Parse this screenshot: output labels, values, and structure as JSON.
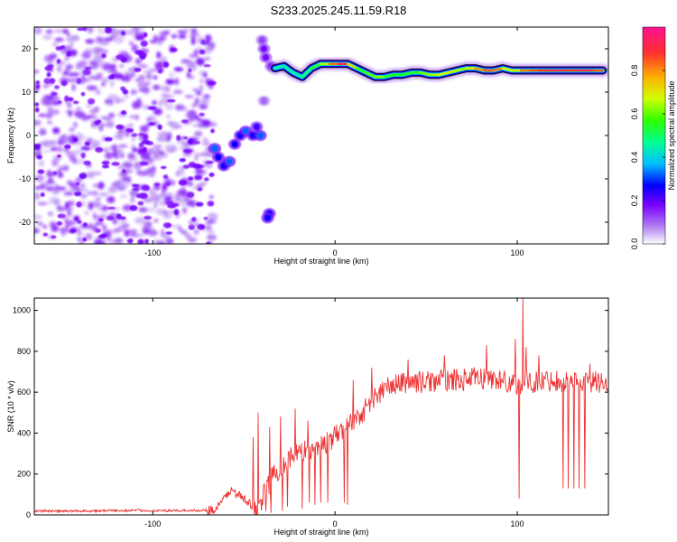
{
  "title": "S233.2025.245.11.59.R18",
  "chart_data": [
    {
      "type": "heatmap",
      "name": "spectrogram",
      "xlabel": "Height of straight line (km)",
      "ylabel": "Frequency (Hz)",
      "xlim": [
        -165,
        150
      ],
      "ylim": [
        -25,
        25
      ],
      "xticks": [
        -100,
        0,
        100
      ],
      "yticks": [
        -20,
        -10,
        0,
        10,
        20
      ],
      "xtick_labels": [
        "-100",
        "0",
        "100"
      ],
      "ytick_labels": [
        "-20",
        "-10",
        "0",
        "10",
        "20"
      ],
      "colorbar": {
        "label": "Normalized spectral amplitude",
        "range": [
          0,
          1
        ],
        "ticks": [
          0.0,
          0.2,
          0.4,
          0.6,
          0.8
        ],
        "tick_labels": [
          "0.0",
          "0.2",
          "0.4",
          "0.6",
          "0.8"
        ],
        "colors": [
          "#ffffff",
          "#b07ff0",
          "#7a00ff",
          "#0000ff",
          "#00c0ff",
          "#00ff90",
          "#30ff00",
          "#d0ff00",
          "#ffb000",
          "#ff3030",
          "#ff1090"
        ]
      },
      "noise_region": {
        "x": [
          -165,
          -67
        ],
        "y": [
          -25,
          25
        ],
        "level": 0.2
      },
      "track": {
        "x": [
          -33,
          -28,
          -23,
          -18,
          -13,
          -8,
          -3,
          2,
          7,
          12,
          17,
          22,
          27,
          32,
          37,
          42,
          47,
          52,
          57,
          62,
          67,
          72,
          77,
          82,
          87,
          92,
          97,
          102,
          107,
          112,
          117,
          122,
          127,
          132,
          137,
          142,
          147
        ],
        "y": [
          15.5,
          16,
          14.5,
          13.5,
          15.5,
          16.5,
          16.5,
          16.5,
          16.5,
          15.5,
          14.5,
          13.5,
          13.5,
          14,
          14,
          14.5,
          14.5,
          14,
          14,
          14.5,
          15,
          15.5,
          15.5,
          15,
          15,
          15.5,
          15,
          15,
          15,
          15,
          15,
          15,
          15,
          15,
          15,
          15,
          15
        ],
        "amp": [
          0.45,
          0.5,
          0.45,
          0.5,
          0.55,
          0.6,
          0.75,
          0.95,
          0.9,
          0.6,
          0.55,
          0.7,
          0.6,
          0.55,
          0.6,
          0.55,
          0.6,
          0.7,
          0.65,
          0.75,
          0.7,
          0.65,
          0.8,
          0.85,
          0.9,
          0.8,
          0.6,
          0.85,
          0.85,
          0.9,
          0.9,
          0.95,
          0.9,
          0.9,
          0.95,
          0.9,
          0.85
        ]
      },
      "blobs": {
        "x": [
          -66,
          -64,
          -61,
          -58,
          -55,
          -52,
          -49,
          -45,
          -43,
          -40,
          -39,
          -38,
          -36,
          -41,
          -37,
          -35,
          -39
        ],
        "y": [
          -3,
          -5,
          -7,
          -6,
          -2,
          0,
          1,
          0,
          2,
          22,
          20,
          18,
          -18,
          0,
          -19,
          16,
          8
        ],
        "amp": [
          0.35,
          0.3,
          0.3,
          0.35,
          0.3,
          0.3,
          0.35,
          0.3,
          0.25,
          0.15,
          0.2,
          0.2,
          0.3,
          0.35,
          0.3,
          0.2,
          0.12
        ]
      }
    },
    {
      "type": "line",
      "name": "snr",
      "xlabel": "Height of straight line (km)",
      "ylabel": "SNR (10 * v/v)",
      "xlim": [
        -165,
        150
      ],
      "ylim": [
        0,
        1060
      ],
      "xticks": [
        -100,
        0,
        100
      ],
      "yticks": [
        0,
        200,
        400,
        600,
        800,
        1000
      ],
      "xtick_labels": [
        "-100",
        "0",
        "100"
      ],
      "ytick_labels": [
        "0",
        "200",
        "400",
        "600",
        "800",
        "1000"
      ],
      "line_color": "#ee3333",
      "series": {
        "x": [
          -165,
          -150,
          -130,
          -110,
          -90,
          -75,
          -66,
          -62,
          -58,
          -55,
          -52,
          -48,
          -45,
          -42,
          -40,
          -38,
          -35,
          -30,
          -25,
          -20,
          -15,
          -10,
          -5,
          0,
          5,
          10,
          15,
          20,
          25,
          30,
          40,
          50,
          60,
          70,
          80,
          90,
          100,
          110,
          120,
          130,
          140,
          150
        ],
        "y": [
          20,
          18,
          20,
          22,
          20,
          22,
          25,
          60,
          120,
          110,
          90,
          60,
          40,
          30,
          80,
          120,
          180,
          230,
          280,
          300,
          320,
          330,
          350,
          380,
          420,
          460,
          500,
          560,
          600,
          630,
          650,
          650,
          660,
          660,
          670,
          660,
          640,
          650,
          660,
          650,
          650,
          650
        ]
      },
      "noise_amplitude": 55,
      "dips": {
        "x": [
          -42,
          -38,
          -35,
          -29,
          -26,
          -22,
          -18,
          -14,
          -11,
          -8,
          -4,
          5,
          7,
          101,
          103,
          125,
          128,
          131,
          134,
          137
        ],
        "y": [
          0,
          20,
          10,
          20,
          40,
          60,
          30,
          60,
          50,
          60,
          60,
          60,
          50,
          80,
          120,
          130,
          130,
          130,
          130,
          130
        ]
      },
      "spikes": {
        "x": [
          -45,
          -42,
          -36,
          -30,
          -22,
          -15,
          10,
          20,
          40,
          60,
          83,
          99,
          103,
          105,
          112,
          140
        ],
        "y": [
          380,
          500,
          430,
          480,
          520,
          460,
          660,
          720,
          760,
          780,
          830,
          860,
          1060,
          820,
          780,
          740
        ]
      }
    }
  ]
}
